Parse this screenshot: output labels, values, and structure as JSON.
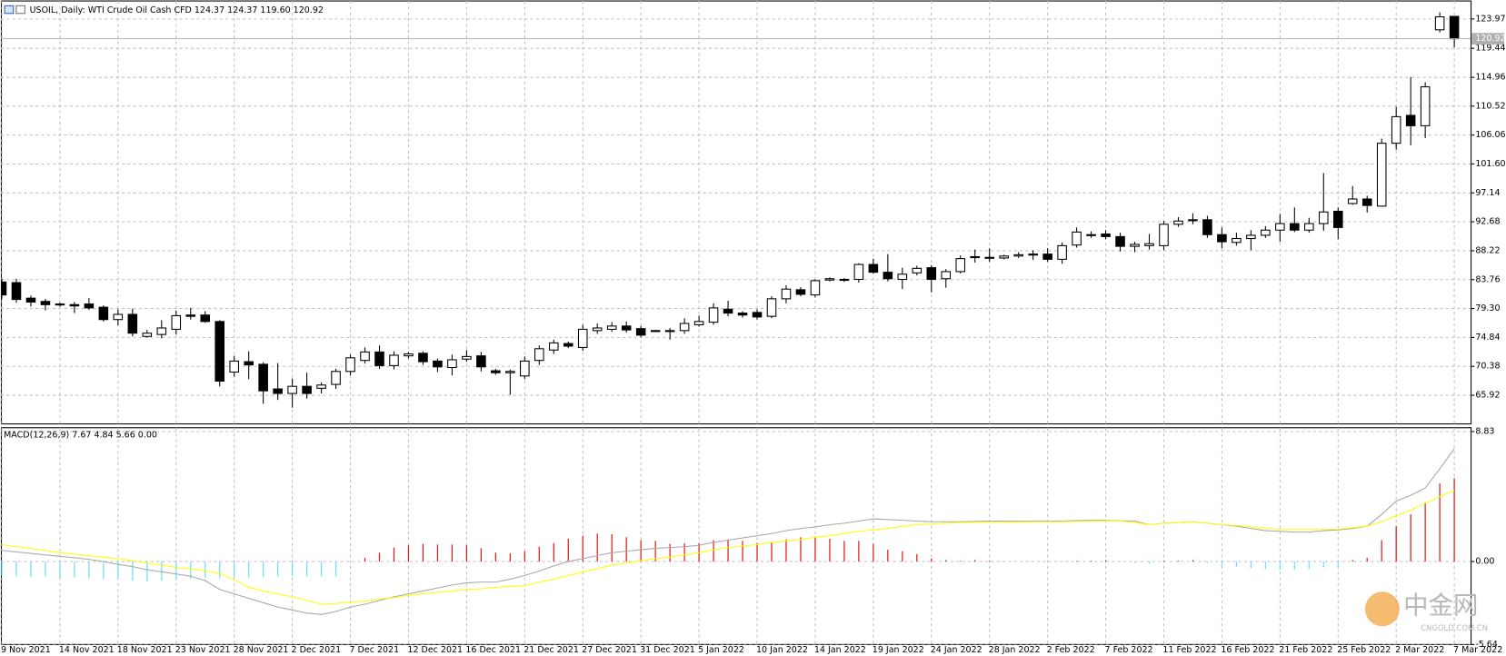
{
  "chart_data": [
    {
      "type": "candlestick",
      "title": "USOIL, Daily:  WTI Crude Oil Cash CFD  124.37 124.37 119.60 120.92",
      "up_color": "#ffffff",
      "down_color": "#000000",
      "grid": true,
      "categories": [
        "9 Nov 2021",
        null,
        null,
        null,
        "14 Nov 2021",
        null,
        null,
        null,
        "18 Nov 2021",
        null,
        null,
        null,
        "23 Nov 2021",
        null,
        null,
        null,
        "28 Nov 2021",
        null,
        null,
        null,
        "2 Dec 2021",
        null,
        null,
        null,
        "7 Dec 2021",
        null,
        null,
        null,
        "12 Dec 2021",
        null,
        null,
        null,
        "16 Dec 2021",
        null,
        null,
        null,
        "21 Dec 2021",
        null,
        null,
        null,
        "27 Dec 2021",
        null,
        null,
        null,
        "31 Dec 2021",
        null,
        null,
        null,
        "5 Jan 2022",
        null,
        null,
        null,
        "10 Jan 2022",
        null,
        null,
        null,
        "14 Jan 2022",
        null,
        null,
        null,
        "19 Jan 2022",
        null,
        null,
        null,
        "24 Jan 2022",
        null,
        null,
        null,
        "28 Jan 2022",
        null,
        null,
        null,
        "2 Feb 2022",
        null,
        null,
        null,
        "7 Feb 2022",
        null,
        null,
        null,
        "11 Feb 2022",
        null,
        null,
        null,
        "16 Feb 2022",
        null,
        null,
        null,
        "21 Feb 2022",
        null,
        null,
        null,
        "25 Feb 2022",
        null,
        null,
        null,
        "2 Mar 2022",
        null,
        null,
        null,
        "7 Mar 2022"
      ],
      "open": [
        83.4,
        83.3,
        80.9,
        80.4,
        80.0,
        79.9,
        80.0,
        79.5,
        77.6,
        78.4,
        75.0,
        75.3,
        76.1,
        78.3,
        78.3,
        77.3,
        69.5,
        71.1,
        70.7,
        66.9,
        66.2,
        67.3,
        67.0,
        67.6,
        69.6,
        71.3,
        72.6,
        70.5,
        72.0,
        72.4,
        71.2,
        70.2,
        71.5,
        72.0,
        69.7,
        69.4,
        68.9,
        71.3,
        72.9,
        73.9,
        73.3,
        75.9,
        76.1,
        76.6,
        76.2,
        75.9,
        75.8,
        75.9,
        76.8,
        77.2,
        79.2,
        78.6,
        78.7,
        78.1,
        80.8,
        82.2,
        81.4,
        83.7,
        83.8,
        83.8,
        86.1,
        84.9,
        83.8,
        84.8,
        85.6,
        83.9,
        85.0,
        87.2,
        87.2,
        87.1,
        87.4,
        87.6,
        87.7,
        86.9,
        89.1,
        90.6,
        90.8,
        90.4,
        88.9,
        89.0,
        89.0,
        92.3,
        92.9,
        93.0,
        90.7,
        89.5,
        90.1,
        90.6,
        91.4,
        92.4,
        91.4,
        92.4,
        94.3,
        95.5,
        96.2,
        95.1,
        104.8,
        109.1,
        107.5,
        122.3,
        124.37
      ],
      "high": [
        83.9,
        83.9,
        81.3,
        80.8,
        80.2,
        80.3,
        80.9,
        79.8,
        79.2,
        79.3,
        76.0,
        77.5,
        79.0,
        79.4,
        78.9,
        77.5,
        72.0,
        72.7,
        71.0,
        70.9,
        68.5,
        69.4,
        67.9,
        70.0,
        72.2,
        73.3,
        73.6,
        72.7,
        72.6,
        72.7,
        71.6,
        72.2,
        72.9,
        72.6,
        70.0,
        69.9,
        71.9,
        73.6,
        74.5,
        74.2,
        76.8,
        77.0,
        77.2,
        77.3,
        76.6,
        76.0,
        76.3,
        77.8,
        78.2,
        80.1,
        80.5,
        78.9,
        79.2,
        81.2,
        82.9,
        82.6,
        83.8,
        84.1,
        84.0,
        86.3,
        87.0,
        87.7,
        85.6,
        85.9,
        86.0,
        85.4,
        87.5,
        88.4,
        88.6,
        87.6,
        88.0,
        88.3,
        88.6,
        89.5,
        91.8,
        91.2,
        91.4,
        91.0,
        89.6,
        90.8,
        92.8,
        93.4,
        94.0,
        93.6,
        91.8,
        91.0,
        91.4,
        92.0,
        93.9,
        94.9,
        93.3,
        100.2,
        94.9,
        98.2,
        96.7,
        105.5,
        110.4,
        115.0,
        114.2,
        125.0,
        124.37
      ],
      "low": [
        80.8,
        80.2,
        79.6,
        79.0,
        79.6,
        78.6,
        79.1,
        77.3,
        76.7,
        75.0,
        74.8,
        74.7,
        75.3,
        77.6,
        77.1,
        67.3,
        68.8,
        68.4,
        64.6,
        65.2,
        64.0,
        65.4,
        66.2,
        66.9,
        69.0,
        70.8,
        70.0,
        69.9,
        71.6,
        70.6,
        69.5,
        69.0,
        71.1,
        69.6,
        69.1,
        66.0,
        68.4,
        70.6,
        72.3,
        73.2,
        72.8,
        75.4,
        75.7,
        75.6,
        74.9,
        75.7,
        74.5,
        75.4,
        76.5,
        76.8,
        78.1,
        77.9,
        77.6,
        77.8,
        80.1,
        81.2,
        81.0,
        83.5,
        83.4,
        83.3,
        84.7,
        83.5,
        82.3,
        84.4,
        81.8,
        82.5,
        84.7,
        86.4,
        86.5,
        86.9,
        87.1,
        86.8,
        86.5,
        86.2,
        88.7,
        90.2,
        90.0,
        88.1,
        88.0,
        88.4,
        88.3,
        91.9,
        92.3,
        90.2,
        88.6,
        89.0,
        88.3,
        90.2,
        89.6,
        91.1,
        91.0,
        91.3,
        90.0,
        95.3,
        94.1,
        95.0,
        103.8,
        104.5,
        105.6,
        121.9,
        119.6
      ],
      "close": [
        81.4,
        80.7,
        80.3,
        79.9,
        79.9,
        79.7,
        79.4,
        77.6,
        78.4,
        75.5,
        75.5,
        76.3,
        78.2,
        78.1,
        77.3,
        68.1,
        71.2,
        70.6,
        66.6,
        66.2,
        67.3,
        66.2,
        67.5,
        69.6,
        71.7,
        72.6,
        70.5,
        72.1,
        72.3,
        71.1,
        70.3,
        71.4,
        71.9,
        70.3,
        69.4,
        69.6,
        71.2,
        73.1,
        74.0,
        73.5,
        76.1,
        76.3,
        76.6,
        76.0,
        75.2,
        75.8,
        75.9,
        77.0,
        77.3,
        79.4,
        78.6,
        78.3,
        78.0,
        80.8,
        82.3,
        81.5,
        83.6,
        83.9,
        83.7,
        86.1,
        84.9,
        83.9,
        84.6,
        85.5,
        83.8,
        85.0,
        87.0,
        87.3,
        87.1,
        87.4,
        87.6,
        87.7,
        86.9,
        89.0,
        91.1,
        90.7,
        90.4,
        88.9,
        89.2,
        89.3,
        92.3,
        92.8,
        93.0,
        90.7,
        89.6,
        90.1,
        90.6,
        91.4,
        92.4,
        91.4,
        92.4,
        94.2,
        91.8,
        96.2,
        95.2,
        104.8,
        108.9,
        107.5,
        113.5,
        124.3,
        120.92
      ],
      "ylim": [
        61.8,
        126.6
      ],
      "yticks": [
        123.97,
        119.44,
        114.96,
        110.52,
        106.06,
        {
          "value": 101.6,
          "label": "101.60"
        },
        97.14,
        92.68,
        88.22,
        83.76,
        {
          "value": 79.3,
          "label": "79.30"
        },
        74.84,
        70.38,
        65.92
      ]
    },
    {
      "type": "macd",
      "title": "MACD(12,26,9) 7.67 4.84 5.66 0.00",
      "histogram": {
        "up_color": "#e02020",
        "down_color": "#70e0f0",
        "values": [
          -1.0,
          -1.0,
          -1.05,
          -1.0,
          -1.1,
          -1.1,
          -1.15,
          -1.2,
          -1.2,
          -1.3,
          -1.35,
          -1.3,
          -1.25,
          -1.2,
          -1.1,
          -1.15,
          -1.1,
          -1.1,
          -1.05,
          -1.0,
          -1.0,
          -1.0,
          -1.0,
          -1.0,
          -0.1,
          0.25,
          0.6,
          0.95,
          1.1,
          1.2,
          1.15,
          1.15,
          1.1,
          0.9,
          0.6,
          0.55,
          0.7,
          1.0,
          1.25,
          1.55,
          1.75,
          1.9,
          1.85,
          1.65,
          1.45,
          1.4,
          1.2,
          1.25,
          1.25,
          1.45,
          1.5,
          1.4,
          1.25,
          1.3,
          1.5,
          1.65,
          1.7,
          1.55,
          1.4,
          1.4,
          1.2,
          0.8,
          0.7,
          0.5,
          0.2,
          0.1,
          0.05,
          0.1,
          0.05,
          0,
          0,
          0,
          0,
          0,
          0.05,
          0.05,
          0.1,
          0,
          -0.1,
          -0.15,
          0.05,
          0.05,
          0.1,
          -0.1,
          -0.3,
          -0.35,
          -0.45,
          -0.5,
          -0.55,
          -0.55,
          -0.5,
          -0.4,
          -0.35,
          0.1,
          0.25,
          1.45,
          2.4,
          3.2,
          4.0,
          5.3,
          5.66
        ]
      },
      "series": [
        {
          "color": "#a8a8a8",
          "values": [
            0.75,
            0.65,
            0.55,
            0.45,
            0.35,
            0.25,
            0.15,
            0.0,
            -0.2,
            -0.35,
            -0.55,
            -0.7,
            -0.85,
            -1.0,
            -1.3,
            -1.9,
            -2.2,
            -2.5,
            -2.8,
            -3.1,
            -3.3,
            -3.5,
            -3.6,
            -3.4,
            -3.1,
            -2.9,
            -2.65,
            -2.4,
            -2.2,
            -2.0,
            -1.8,
            -1.6,
            -1.45,
            -1.4,
            -1.4,
            -1.2,
            -0.95,
            -0.65,
            -0.3,
            0.0,
            0.2,
            0.4,
            0.6,
            0.7,
            0.8,
            0.9,
            0.95,
            1.0,
            1.1,
            1.3,
            1.45,
            1.6,
            1.75,
            1.9,
            2.1,
            2.25,
            2.35,
            2.5,
            2.6,
            2.75,
            2.9,
            2.85,
            2.8,
            2.75,
            2.7,
            2.7,
            2.7,
            2.72,
            2.74,
            2.75,
            2.75,
            2.75,
            2.75,
            2.75,
            2.78,
            2.8,
            2.78,
            2.76,
            2.75,
            2.5,
            2.6,
            2.65,
            2.7,
            2.6,
            2.5,
            2.4,
            2.25,
            2.1,
            2.05,
            2.0,
            2.0,
            2.1,
            2.15,
            2.25,
            2.4,
            3.2,
            4.1,
            4.5,
            5.0,
            6.3,
            7.67
          ]
        },
        {
          "color": "#ffff00",
          "values": [
            1.15,
            1.0,
            0.9,
            0.75,
            0.6,
            0.5,
            0.4,
            0.3,
            0.2,
            0.05,
            -0.1,
            -0.25,
            -0.4,
            -0.5,
            -0.65,
            -0.8,
            -1.25,
            -1.75,
            -2.0,
            -2.2,
            -2.4,
            -2.65,
            -2.9,
            -2.85,
            -2.75,
            -2.7,
            -2.55,
            -2.45,
            -2.3,
            -2.2,
            -2.1,
            -2.0,
            -1.9,
            -1.85,
            -1.75,
            -1.7,
            -1.65,
            -1.4,
            -1.2,
            -0.95,
            -0.7,
            -0.5,
            -0.25,
            -0.1,
            0.05,
            0.2,
            0.3,
            0.45,
            0.6,
            0.8,
            0.95,
            1.05,
            1.15,
            1.3,
            1.4,
            1.5,
            1.65,
            1.75,
            1.9,
            2.05,
            2.15,
            2.25,
            2.4,
            2.5,
            2.55,
            2.6,
            2.65,
            2.66,
            2.67,
            2.68,
            2.69,
            2.7,
            2.7,
            2.7,
            2.72,
            2.73,
            2.74,
            2.75,
            2.65,
            2.5,
            2.6,
            2.65,
            2.7,
            2.6,
            2.5,
            2.45,
            2.35,
            2.25,
            2.2,
            2.2,
            2.2,
            2.2,
            2.2,
            2.3,
            2.4,
            2.7,
            3.1,
            3.5,
            3.95,
            4.4,
            4.84
          ]
        }
      ],
      "ylim": [
        -5.64,
        8.83
      ],
      "yticks": [
        8.83,
        {
          "value": 0,
          "label": "0.00"
        },
        -5.64
      ]
    }
  ],
  "watermark": {
    "name": "中金网",
    "url": "CNGOLD.COM.CN"
  }
}
